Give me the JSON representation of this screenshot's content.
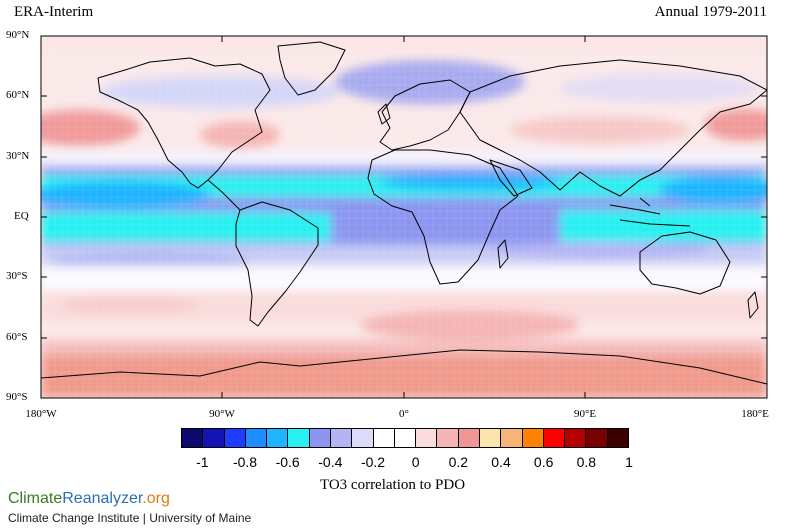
{
  "title_left": "ERA-Interim",
  "title_right": "Annual 1979-2011",
  "lat_labels": [
    "90°N",
    "60°N",
    "30°N",
    "EQ",
    "30°S",
    "60°S",
    "90°S"
  ],
  "lon_labels": [
    "180°W",
    "90°W",
    "0°",
    "90°E",
    "180°E"
  ],
  "colorbar": {
    "title": "TO3 correlation to PDO",
    "colors": [
      "#0a0a6e",
      "#1414b4",
      "#1e3cff",
      "#1e8cff",
      "#1eb4ff",
      "#28f0f0",
      "#8c96f0",
      "#b4b4f5",
      "#dcdcfa",
      "#ffffff",
      "#ffffff",
      "#fadcdc",
      "#f5b4b4",
      "#f09696",
      "#fae6aa",
      "#f5b478",
      "#ff8200",
      "#ff0000",
      "#b40000",
      "#780000",
      "#3c0000"
    ],
    "tick_labels": [
      "-1",
      "-0.8",
      "-0.6",
      "-0.4",
      "-0.2",
      "0",
      "0.2",
      "0.4",
      "0.6",
      "0.8",
      "1"
    ]
  },
  "brand": {
    "part1": "Climate",
    "part2": "Reanalyzer",
    "part3": ".org"
  },
  "institution": "Climate Change Institute | University of Maine",
  "chart_data": {
    "type": "heatmap",
    "variable": "TO3 correlation to PDO",
    "dataset": "ERA-Interim",
    "period": "Annual 1979-2011",
    "value_range": [
      -1,
      1
    ],
    "x_axis": "longitude, 180°W to 180°E",
    "y_axis": "latitude, 90°S to 90°N",
    "zonal_pattern": [
      {
        "lat": 85,
        "value": 0.1
      },
      {
        "lat": 65,
        "value": -0.2
      },
      {
        "lat": 45,
        "value": 0.25
      },
      {
        "lat": 30,
        "value": 0.05
      },
      {
        "lat": 15,
        "value": -0.45
      },
      {
        "lat": 5,
        "value": -0.5
      },
      {
        "lat": -10,
        "value": -0.35
      },
      {
        "lat": -20,
        "value": -0.1
      },
      {
        "lat": -35,
        "value": 0.1
      },
      {
        "lat": -50,
        "value": 0.15
      },
      {
        "lat": -65,
        "value": 0.2
      },
      {
        "lat": -85,
        "value": 0.3
      }
    ]
  }
}
